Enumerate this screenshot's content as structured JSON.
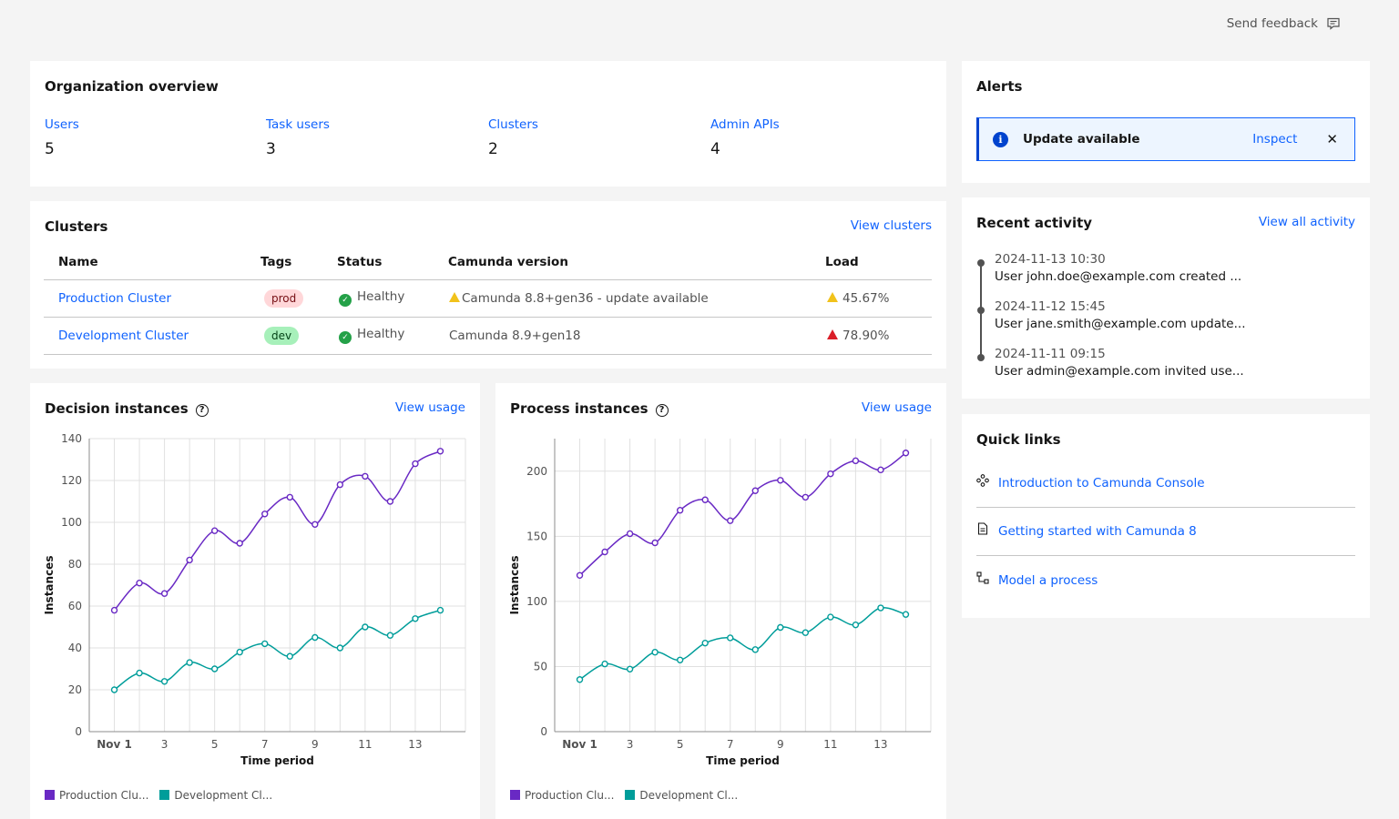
{
  "feedback": {
    "label": "Send feedback",
    "icon": "chat-icon"
  },
  "org_overview": {
    "title": "Organization overview",
    "metrics": [
      {
        "label": "Users",
        "value": "5"
      },
      {
        "label": "Task users",
        "value": "3"
      },
      {
        "label": "Clusters",
        "value": "2"
      },
      {
        "label": "Admin APIs",
        "value": "4"
      }
    ]
  },
  "clusters": {
    "title": "Clusters",
    "view_link": "View clusters",
    "columns": [
      "Name",
      "Tags",
      "Status",
      "Camunda version",
      "Load"
    ],
    "rows": [
      {
        "name": "Production Cluster",
        "tag": "prod",
        "status": "Healthy",
        "version": "Camunda 8.8+gen36 - update available",
        "version_warning": true,
        "load": "45.67%",
        "load_level": "warning"
      },
      {
        "name": "Development Cluster",
        "tag": "dev",
        "status": "Healthy",
        "version": "Camunda 8.9+gen18",
        "version_warning": false,
        "load": "78.90%",
        "load_level": "critical"
      }
    ]
  },
  "decision": {
    "title": "Decision instances",
    "view_link": "View usage",
    "legend": [
      "Production Clu...",
      "Development Cl..."
    ]
  },
  "process": {
    "title": "Process instances",
    "view_link": "View usage",
    "legend": [
      "Production Clu...",
      "Development Cl..."
    ]
  },
  "chart_data": [
    {
      "type": "line",
      "title": "Decision instances",
      "xlabel": "Time period",
      "ylabel": "Instances",
      "x": [
        1,
        2,
        3,
        4,
        5,
        6,
        7,
        8,
        9,
        10,
        11,
        12,
        13,
        14
      ],
      "x_tick_labels": [
        "Nov 1",
        "3",
        "5",
        "7",
        "9",
        "11",
        "13"
      ],
      "x_tick_values": [
        1,
        3,
        5,
        7,
        9,
        11,
        13
      ],
      "ylim": [
        0,
        140
      ],
      "y_ticks": [
        0,
        20,
        40,
        60,
        80,
        100,
        120,
        140
      ],
      "grid": true,
      "legend": "bottom-left",
      "series": [
        {
          "name": "Production Clu...",
          "color": "#6929c4",
          "values": [
            58,
            71,
            66,
            82,
            96,
            90,
            104,
            112,
            99,
            118,
            122,
            110,
            128,
            134
          ]
        },
        {
          "name": "Development Cl...",
          "color": "#009d9a",
          "values": [
            20,
            28,
            24,
            33,
            30,
            38,
            42,
            36,
            45,
            40,
            50,
            46,
            54,
            58
          ]
        }
      ]
    },
    {
      "type": "line",
      "title": "Process instances",
      "xlabel": "Time period",
      "ylabel": "Instances",
      "x": [
        1,
        2,
        3,
        4,
        5,
        6,
        7,
        8,
        9,
        10,
        11,
        12,
        13,
        14
      ],
      "x_tick_labels": [
        "Nov 1",
        "3",
        "5",
        "7",
        "9",
        "11",
        "13"
      ],
      "x_tick_values": [
        1,
        3,
        5,
        7,
        9,
        11,
        13
      ],
      "ylim": [
        0,
        225
      ],
      "y_ticks": [
        0,
        50,
        100,
        150,
        200
      ],
      "grid": true,
      "legend": "bottom-left",
      "series": [
        {
          "name": "Production Clu...",
          "color": "#6929c4",
          "values": [
            120,
            138,
            152,
            145,
            170,
            178,
            162,
            185,
            193,
            180,
            198,
            208,
            201,
            214
          ]
        },
        {
          "name": "Development Cl...",
          "color": "#009d9a",
          "values": [
            40,
            52,
            48,
            61,
            55,
            68,
            72,
            63,
            80,
            76,
            88,
            82,
            95,
            90
          ]
        }
      ]
    }
  ],
  "alerts": {
    "title": "Alerts",
    "item": {
      "title": "Update available",
      "action": "Inspect",
      "icon": "info-icon",
      "close": "✕"
    }
  },
  "activity": {
    "title": "Recent activity",
    "view_link": "View all activity",
    "items": [
      {
        "timestamp": "2024-11-13 10:30",
        "message": "User john.doe@example.com created ..."
      },
      {
        "timestamp": "2024-11-12 15:45",
        "message": "User jane.smith@example.com update..."
      },
      {
        "timestamp": "2024-11-11 09:15",
        "message": "User admin@example.com invited use..."
      }
    ]
  },
  "quick_links": {
    "title": "Quick links",
    "items": [
      {
        "label": "Introduction to Camunda Console",
        "icon": "console-icon"
      },
      {
        "label": "Getting started with Camunda 8",
        "icon": "document-icon"
      },
      {
        "label": "Model a process",
        "icon": "flow-icon"
      }
    ]
  }
}
